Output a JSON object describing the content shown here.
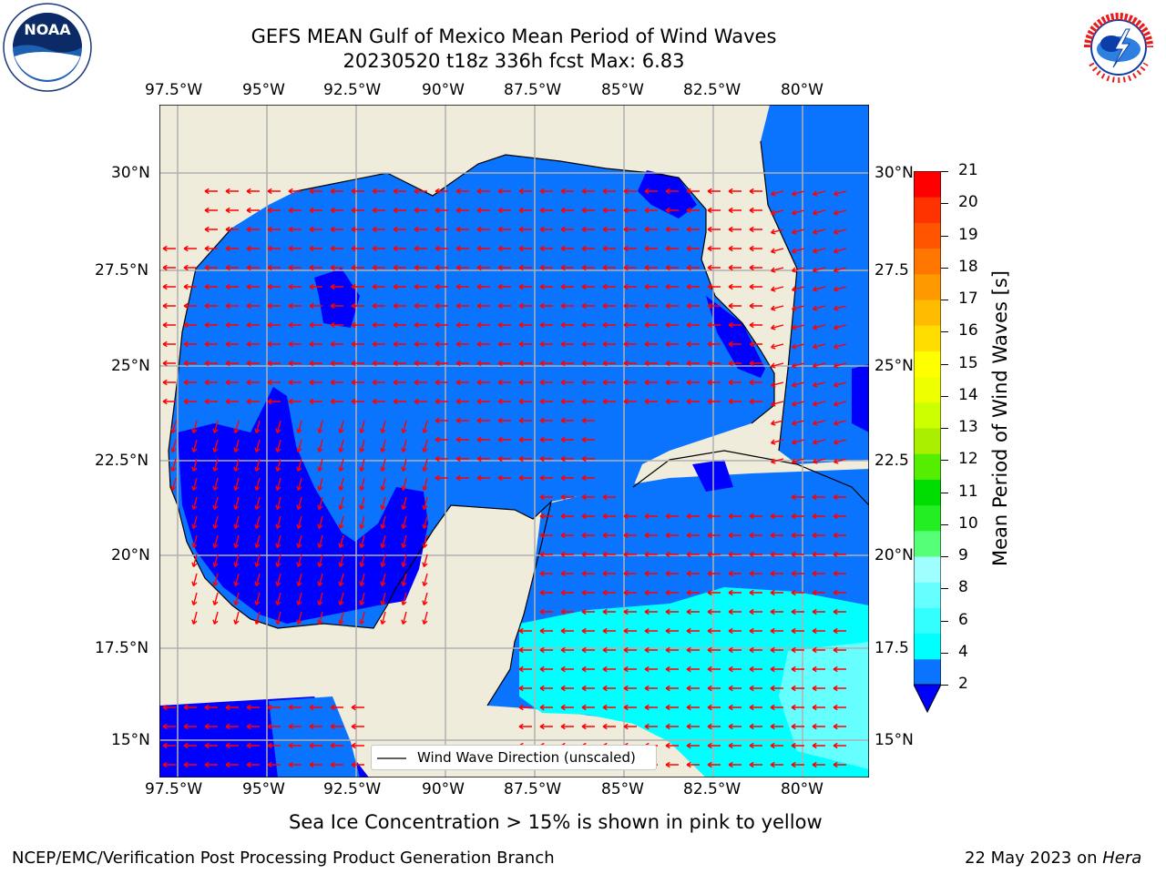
{
  "title": {
    "line1": "GEFS MEAN Gulf of Mexico Mean Period of Wind Waves",
    "line2": "20230520 t18z 336h fcst   Max: 6.83"
  },
  "axes": {
    "lon_labels": [
      "97.5°W",
      "95°W",
      "92.5°W",
      "90°W",
      "87.5°W",
      "85°W",
      "82.5°W",
      "80°W"
    ],
    "lat_labels": [
      "30°N",
      "27.5°N",
      "25°N",
      "22.5°N",
      "20°N",
      "17.5°N",
      "15°N"
    ],
    "lat_labels_right": [
      "30°N",
      "27.5",
      "25°N",
      "22.5",
      "20°N",
      "17.5",
      "15°N"
    ]
  },
  "legend": {
    "label": "Wind Wave Direction (unscaled)"
  },
  "colorbar": {
    "title": "Mean Period of Wind Waves [s]",
    "ticks": [
      "2",
      "4",
      "6",
      "8",
      "9",
      "10",
      "11",
      "12",
      "13",
      "14",
      "15",
      "16",
      "17",
      "18",
      "19",
      "20",
      "21"
    ],
    "colors": [
      "#0a74ff",
      "#00ffff",
      "#33ffff",
      "#66ffff",
      "#9ffffe",
      "#55ff77",
      "#22ee22",
      "#00dd00",
      "#55ee00",
      "#aaee00",
      "#ccff00",
      "#eeff00",
      "#ffff00",
      "#ffdd00",
      "#ffbb00",
      "#ff9900",
      "#ff7700",
      "#ff5500",
      "#ff3300",
      "#ff0000"
    ],
    "extend_color": "#0000ff"
  },
  "note": "Sea Ice Concentration > 15% is shown in pink to yellow",
  "footer": {
    "left": "NCEP/EMC/Verification Post Processing Product Generation Branch",
    "right_date": "22 May 2023 on ",
    "right_machine": "Hera"
  },
  "logos": {
    "noaa_text": "NOAA",
    "nws_text": "NATIONAL WEATHER SERVICE"
  },
  "colors": {
    "land": "#efecdc",
    "ocean": "#0a74ff",
    "low": "#0000ff",
    "arrow": "#ff0000",
    "grid": "#b0b0b0"
  }
}
